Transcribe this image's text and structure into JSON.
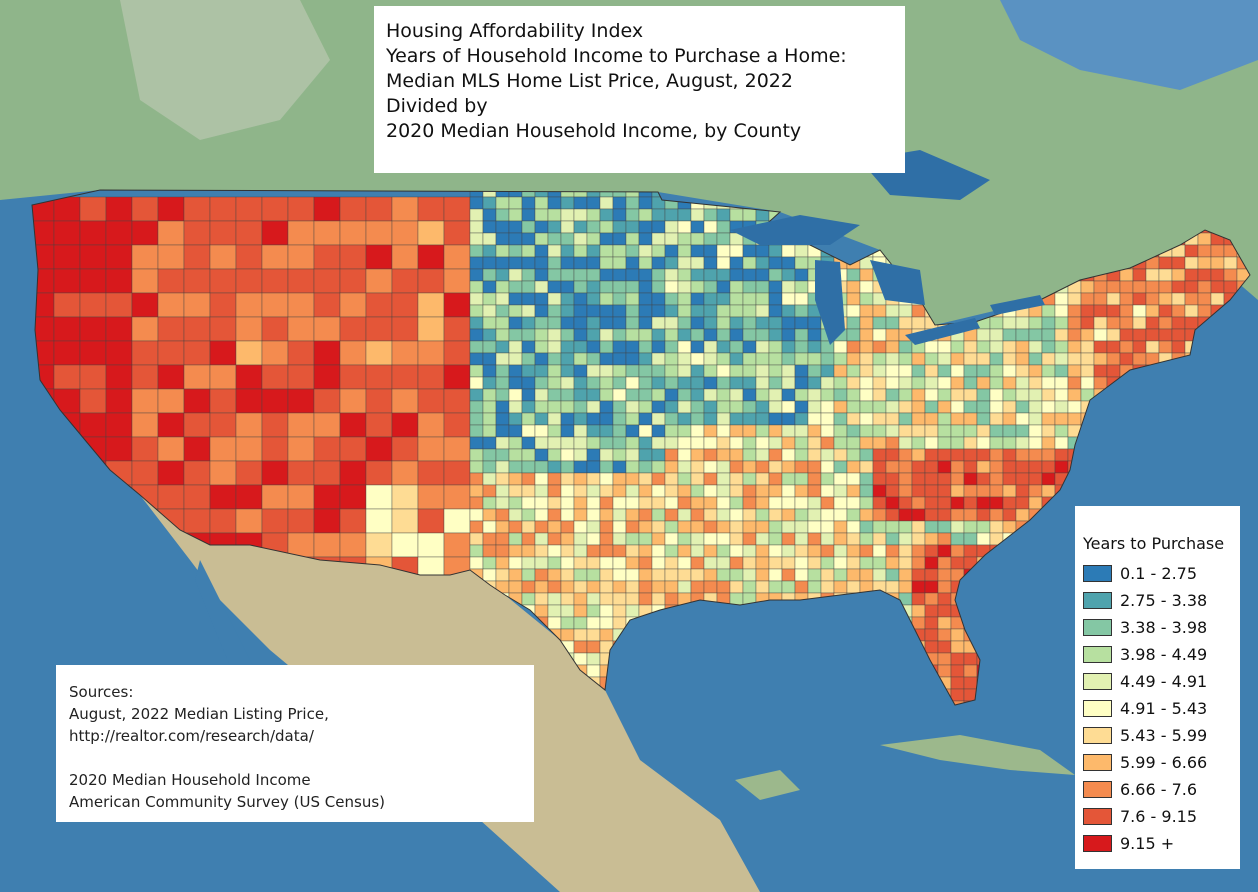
{
  "title": {
    "lines": [
      "Housing Affordability Index",
      "Years of Household Income to Purchase a Home:",
      "Median MLS Home List Price, August, 2022",
      "Divided by",
      "2020 Median Household Income, by County"
    ]
  },
  "legend": {
    "title": "Years to Purchase",
    "classes": [
      {
        "label": "0.1 - 2.75",
        "color": "#2c7bb6"
      },
      {
        "label": "2.75 - 3.38",
        "color": "#4fa3ad"
      },
      {
        "label": "3.38 - 3.98",
        "color": "#84c7a4"
      },
      {
        "label": "3.98 - 4.49",
        "color": "#b7e0a0"
      },
      {
        "label": "4.49 - 4.91",
        "color": "#e2f1b2"
      },
      {
        "label": "4.91 - 5.43",
        "color": "#ffffc4"
      },
      {
        "label": "5.43 - 5.99",
        "color": "#fedc94"
      },
      {
        "label": "5.99 - 6.66",
        "color": "#fdb96b"
      },
      {
        "label": "6.66 - 7.6",
        "color": "#f48b4f"
      },
      {
        "label": "7.6 - 9.15",
        "color": "#e45638"
      },
      {
        "label": "9.15 +",
        "color": "#d7191c"
      }
    ]
  },
  "sources": {
    "lines": [
      "Sources:",
      "August, 2022 Median Listing Price,",
      "http://realtor.com/research/data/",
      "",
      "2020 Median Household Income",
      "American Community Survey (US Census)"
    ]
  },
  "colors": {
    "ocean": "#3f7fb0",
    "land_canada": "#8fb58a",
    "land_mexico": "#c9bd94",
    "lakes": "#2f6fa6"
  }
}
